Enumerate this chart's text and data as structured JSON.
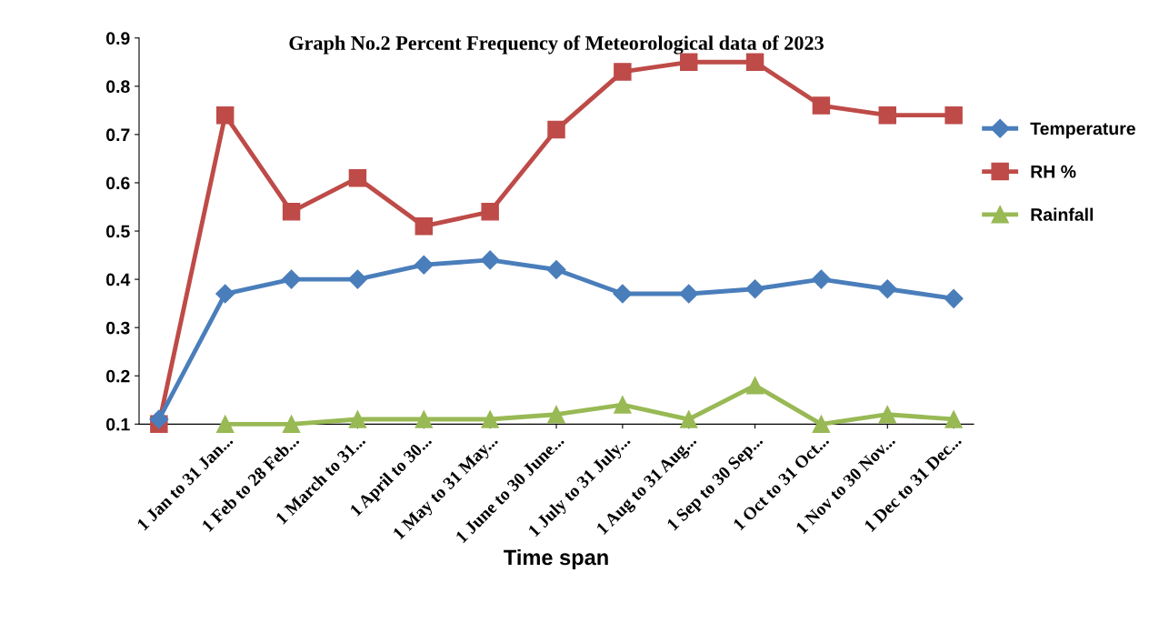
{
  "chart_data": {
    "type": "line",
    "title": "Graph No.2 Percent Frequency of Meteorological data of 2023",
    "xlabel": "Time span",
    "categories": [
      null,
      "1 Jan to 31 Jan...",
      "1 Feb to 28 Feb...",
      "1 March to 31...",
      "1 April to 30...",
      "1 May to 31 May...",
      "1 June to 30 June...",
      "1 July to 31 July...",
      "1 Aug to 31 Aug...",
      "1 Sep to 30 Sep...",
      "1 Oct to 31 Oct...",
      "1 Nov to 30 Nov...",
      "1 Dec to 31 Dec..."
    ],
    "series": [
      {
        "name": "Temperature",
        "color": "#4a7ebb",
        "marker": "diamond",
        "values": [
          0.11,
          0.37,
          0.4,
          0.4,
          0.43,
          0.44,
          0.42,
          0.37,
          0.37,
          0.38,
          0.4,
          0.38,
          0.36
        ]
      },
      {
        "name": "RH %",
        "color": "#be4b48",
        "marker": "square",
        "values": [
          0.1,
          0.74,
          0.54,
          0.61,
          0.51,
          0.54,
          0.71,
          0.83,
          0.85,
          0.85,
          0.76,
          0.74,
          0.74
        ]
      },
      {
        "name": "Rainfall",
        "color": "#98b954",
        "marker": "triangle",
        "values": [
          null,
          0.1,
          0.1,
          0.11,
          0.11,
          0.11,
          0.12,
          0.14,
          0.11,
          0.18,
          0.1,
          0.12,
          0.11
        ]
      }
    ],
    "ylim": [
      0.1,
      0.9
    ],
    "yticks": [
      0.1,
      0.2,
      0.3,
      0.4,
      0.5,
      0.6,
      0.7,
      0.8,
      0.9
    ],
    "grid": false,
    "legend": "right"
  }
}
